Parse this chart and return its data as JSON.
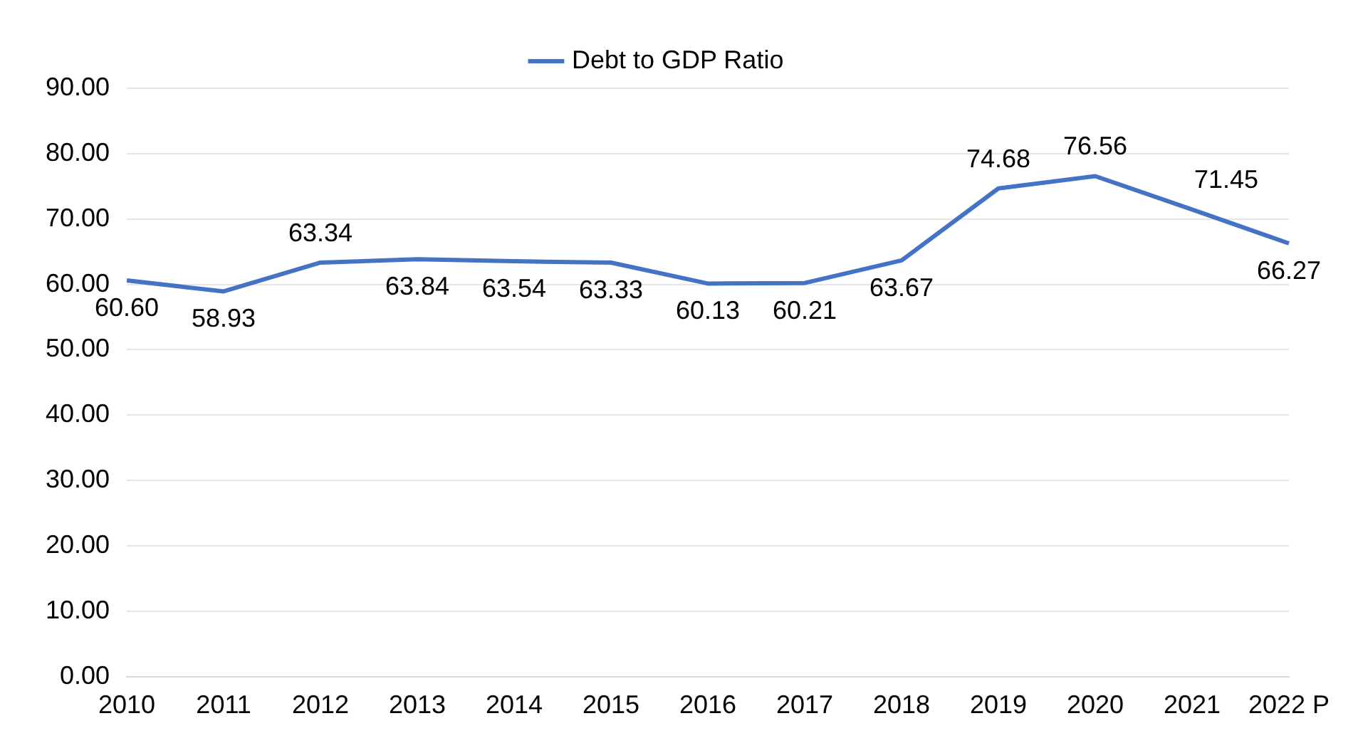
{
  "chart_data": {
    "type": "line",
    "categories": [
      "2010",
      "2011",
      "2012",
      "2013",
      "2014",
      "2015",
      "2016",
      "2017",
      "2018",
      "2019",
      "2020",
      "2021",
      "2022 P"
    ],
    "series": [
      {
        "name": "Debt to GDP Ratio",
        "color": "#4472c4",
        "values": [
          60.6,
          58.93,
          63.34,
          63.84,
          63.54,
          63.33,
          60.13,
          60.21,
          63.67,
          74.68,
          76.56,
          71.45,
          66.27
        ],
        "value_labels": [
          "60.60",
          "58.93",
          "63.34",
          "63.84",
          "63.54",
          "63.33",
          "60.13",
          "60.21",
          "63.67",
          "74.68",
          "76.56",
          "71.45",
          "66.27"
        ]
      }
    ],
    "ylim": [
      0,
      90
    ],
    "yticks": [
      {
        "value": 0,
        "label": "0.00"
      },
      {
        "value": 10,
        "label": "10.00"
      },
      {
        "value": 20,
        "label": "20.00"
      },
      {
        "value": 30,
        "label": "30.00"
      },
      {
        "value": 40,
        "label": "40.00"
      },
      {
        "value": 50,
        "label": "50.00"
      },
      {
        "value": 60,
        "label": "60.00"
      },
      {
        "value": 70,
        "label": "70.00"
      },
      {
        "value": 80,
        "label": "80.00"
      },
      {
        "value": 90,
        "label": "90.00"
      }
    ],
    "grid": "y",
    "legend": "top",
    "marker": "none",
    "line_style": "solid"
  }
}
